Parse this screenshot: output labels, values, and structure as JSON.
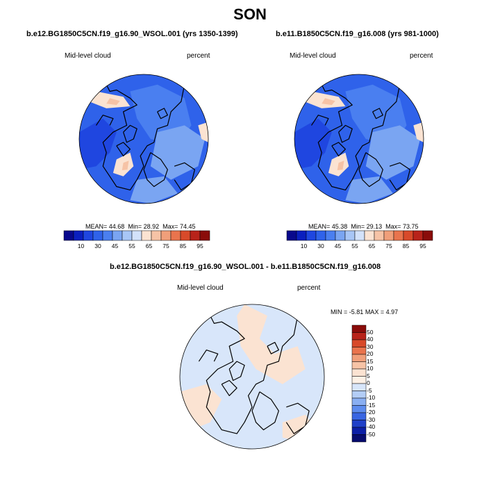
{
  "season": "SON",
  "panels": [
    {
      "case_title": "b.e12.BG1850C5CN.f19_g16.90_WSOL.001 (yrs 1350-1399)",
      "variable": "Mid-level cloud",
      "units": "percent",
      "mean_label": "MEAN=",
      "mean": "44.68",
      "min_label": "Min=",
      "min": "28.92",
      "max_label": "Max=",
      "max": "74.45"
    },
    {
      "case_title": "b.e11.B1850C5CN.f19_g16.008 (yrs 981-1000)",
      "variable": "Mid-level cloud",
      "units": "percent",
      "mean_label": "MEAN=",
      "mean": "45.38",
      "min_label": "Min=",
      "min": "29.13",
      "max_label": "Max=",
      "max": "73.75"
    }
  ],
  "diff_panel": {
    "title": "b.e12.BG1850C5CN.f19_g16.90_WSOL.001 - b.e11.B1850C5CN.f19_g16.008",
    "variable": "Mid-level cloud",
    "units": "percent",
    "min_label": "MIN =",
    "min": "-5.81",
    "max_label": "MAX =",
    "max": "4.97"
  },
  "colorbar_abs": {
    "ticks": [
      "10",
      "30",
      "45",
      "55",
      "65",
      "75",
      "85",
      "95"
    ],
    "colors": [
      "#08088c",
      "#0a1fbf",
      "#1f46e0",
      "#2f62ea",
      "#4a7ff0",
      "#7aa5f2",
      "#a8c6f6",
      "#d3e2fa",
      "#fbe3d2",
      "#f6c3a6",
      "#f09f7a",
      "#e9744d",
      "#d84a2a",
      "#b8231a",
      "#8a0c0a"
    ]
  },
  "colorbar_diff": {
    "ticks": [
      "50",
      "40",
      "30",
      "20",
      "15",
      "10",
      "5",
      "0",
      "-5",
      "-10",
      "-15",
      "-20",
      "-30",
      "-40",
      "-50"
    ],
    "colors": [
      "#8a0c0a",
      "#b8231a",
      "#d84a2a",
      "#e9744d",
      "#f09f7a",
      "#f6c3a6",
      "#fbe3d2",
      "#fdf1e6",
      "#d8e6fa",
      "#b3cdf6",
      "#8aaff2",
      "#5e8cee",
      "#3a66e2",
      "#1f40c8",
      "#0c1fa6",
      "#070c6e"
    ]
  },
  "map_colors": {
    "abs_base": "#2f62ea",
    "abs_light": "#7aa5f2",
    "abs_mid": "#4a7ff0",
    "abs_dark": "#1f46e0",
    "abs_warm": "#fbe3d2",
    "abs_warm2": "#f6c3a6",
    "diff_base": "#d8e6fa",
    "diff_warm": "#fbe3d2"
  }
}
